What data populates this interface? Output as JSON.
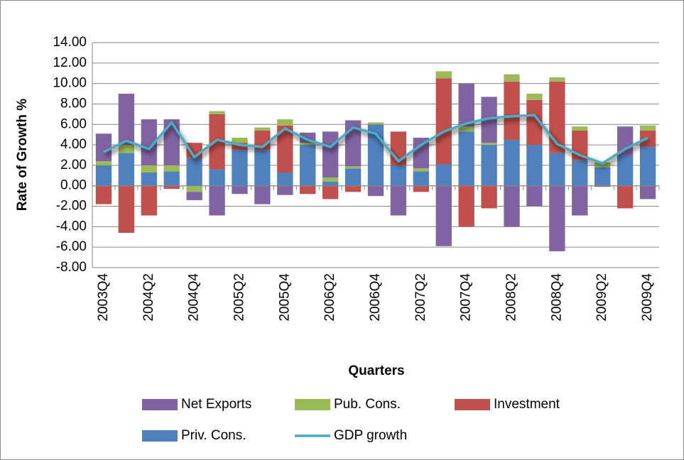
{
  "chart_data": {
    "type": "bar",
    "stacked": true,
    "x_label": "Quarters",
    "y_label": "Rate of Growth %",
    "categories": [
      "2003Q4",
      null,
      "2004Q2",
      null,
      "2004Q4",
      null,
      "2005Q2",
      null,
      "2005Q4",
      null,
      "2006Q2",
      null,
      "2006Q4",
      null,
      "2007Q2",
      null,
      "2007Q4",
      null,
      "2008Q2",
      null,
      "2008Q4",
      null,
      "2009Q2",
      null,
      "2009Q4"
    ],
    "series": [
      {
        "name": "Net Exports",
        "color": "#8064a2",
        "values": [
          2.7,
          5.0,
          4.5,
          4.5,
          -0.8,
          -2.9,
          -0.8,
          -1.8,
          -0.9,
          1.0,
          4.5,
          4.5,
          -1.0,
          -2.9,
          3.0,
          -5.9,
          4.2,
          4.5,
          -4.0,
          -2.0,
          -6.4,
          -2.9,
          0,
          2.9,
          -1.3
        ]
      },
      {
        "name": "Pub. Cons.",
        "color": "#9bbb59",
        "values": [
          0.4,
          0.8,
          0.7,
          0.6,
          -0.6,
          0.3,
          0.5,
          0.3,
          0.6,
          0.2,
          0.4,
          0.2,
          0.2,
          0,
          0.3,
          0.7,
          0.5,
          0.2,
          0.7,
          0.6,
          0.4,
          0.4,
          0.5,
          0,
          0.5
        ]
      },
      {
        "name": "Investment",
        "color": "#c0504d",
        "values": [
          -1.8,
          -4.6,
          -2.9,
          -0.3,
          1.5,
          5.4,
          0.7,
          1.9,
          4.6,
          -0.8,
          -1.3,
          -0.6,
          0,
          3.3,
          -0.6,
          8.4,
          -4.0,
          -2.2,
          5.7,
          4.4,
          7.0,
          2.9,
          -0.1,
          -2.2,
          1.6
        ]
      },
      {
        "name": "Priv. Cons.",
        "color": "#4f81bd",
        "values": [
          2.0,
          3.2,
          1.3,
          1.4,
          2.7,
          1.6,
          3.5,
          3.5,
          1.3,
          4.0,
          0.4,
          1.7,
          6.0,
          2.0,
          1.4,
          2.1,
          5.3,
          4.0,
          4.5,
          4.0,
          3.2,
          2.5,
          1.8,
          2.9,
          3.8
        ]
      },
      {
        "name": "GDP growth",
        "type": "line",
        "color": "#4bacc6",
        "values": [
          3.3,
          4.4,
          3.6,
          6.2,
          2.8,
          4.5,
          4.0,
          3.8,
          5.6,
          4.5,
          3.8,
          5.7,
          5.1,
          2.4,
          4.0,
          5.3,
          6.1,
          6.6,
          6.8,
          6.9,
          4.1,
          3.0,
          2.2,
          3.6,
          4.7
        ]
      }
    ],
    "ylim": [
      -8,
      14
    ],
    "yticks": [
      {
        "value": -8,
        "label": "-8.00"
      },
      {
        "value": -6,
        "label": "-6.00"
      },
      {
        "value": -4,
        "label": "-4.00"
      },
      {
        "value": -2,
        "label": "-2.00"
      },
      {
        "value": 0,
        "label": "0.00"
      },
      {
        "value": 2,
        "label": "2.00"
      },
      {
        "value": 4,
        "label": "4.00"
      },
      {
        "value": 6,
        "label": "6.00"
      },
      {
        "value": 8,
        "label": "8.00"
      },
      {
        "value": 10,
        "label": "10.00"
      },
      {
        "value": 12,
        "label": "12.00"
      },
      {
        "value": 14,
        "label": "14.00"
      }
    ],
    "grid": true,
    "legend": "bottom"
  }
}
